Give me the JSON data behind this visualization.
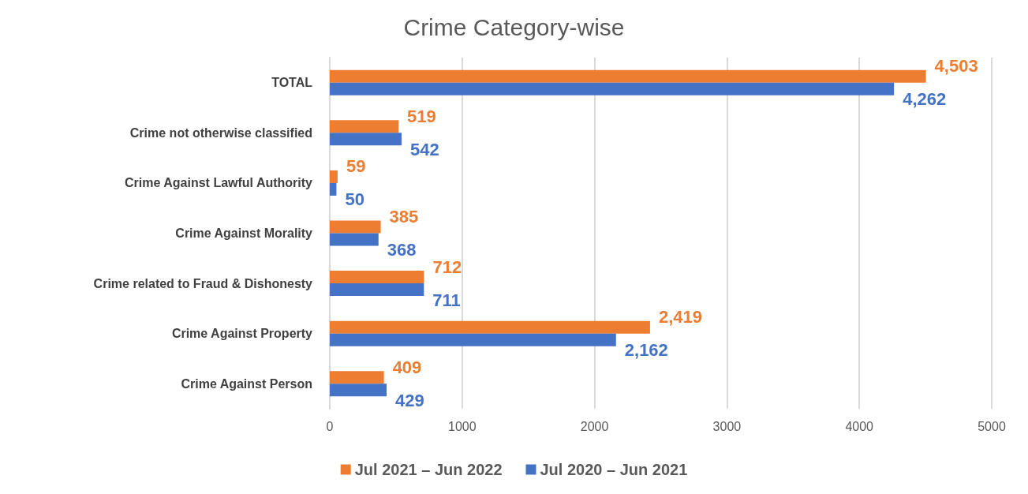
{
  "chart_data": {
    "type": "bar",
    "orientation": "horizontal",
    "title": "Crime Category-wise",
    "categories": [
      "TOTAL",
      "Crime not otherwise classified",
      "Crime Against Lawful Authority",
      "Crime Against Morality",
      "Crime related to Fraud & Dishonesty",
      "Crime Against Property",
      "Crime Against Person"
    ],
    "series": [
      {
        "name": "Jul 2021 – Jun 2022",
        "color": "#ed7d31",
        "values": [
          4503,
          519,
          59,
          385,
          712,
          2419,
          409
        ],
        "value_labels": [
          "4,503",
          "519",
          "59",
          "385",
          "712",
          "2,419",
          "409"
        ]
      },
      {
        "name": "Jul 2020 – Jun 2021",
        "color": "#4472c4",
        "values": [
          4262,
          542,
          50,
          368,
          711,
          2162,
          429
        ],
        "value_labels": [
          "4,262",
          "542",
          "50",
          "368",
          "711",
          "2,162",
          "429"
        ]
      }
    ],
    "xlim": [
      0,
      5000
    ],
    "xticks": [
      0,
      1000,
      2000,
      3000,
      4000,
      5000
    ],
    "grid": "x",
    "legend": "bottom"
  }
}
